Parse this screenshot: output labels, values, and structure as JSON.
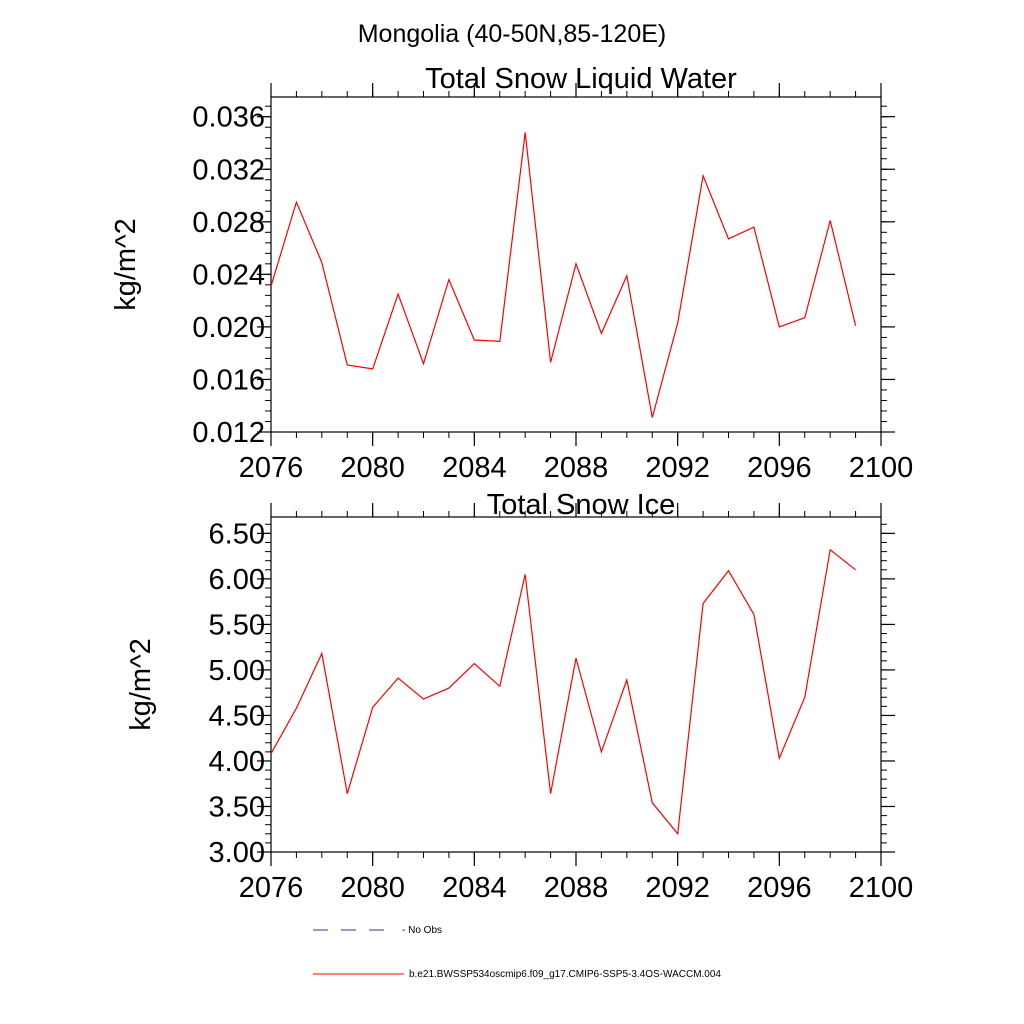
{
  "figure": {
    "title": "Mongolia (40-50N,85-120E)",
    "legend": {
      "entries": [
        {
          "label": "- No Obs",
          "color": "#2b3a8c",
          "style": "dashed"
        },
        {
          "label": "b.e21.BWSSP534oscmip6.f09_g17.CMIP6-SSP5-3.4OS-WACCM.004",
          "color": "#ff0000",
          "style": "solid"
        }
      ]
    }
  },
  "colors": {
    "series": "#ff0000",
    "axis": "#000000"
  },
  "chart_data": [
    {
      "type": "line",
      "title": "Total Snow Liquid Water",
      "xlabel": "",
      "ylabel": "kg/m^2",
      "xlim": [
        2076,
        2100
      ],
      "ylim": [
        0.012,
        0.0375
      ],
      "xticks": [
        "2076",
        "2080",
        "2084",
        "2088",
        "2092",
        "2096",
        "2100"
      ],
      "yticks": [
        "0.012",
        "0.016",
        "0.020",
        "0.024",
        "0.028",
        "0.032",
        "0.036"
      ],
      "grid": false,
      "x": [
        2076,
        2077,
        2078,
        2079,
        2080,
        2081,
        2082,
        2083,
        2084,
        2085,
        2086,
        2087,
        2088,
        2089,
        2090,
        2091,
        2092,
        2093,
        2094,
        2095,
        2096,
        2097,
        2098,
        2099
      ],
      "series": [
        {
          "values": [
            0.0231,
            0.0295,
            0.0249,
            0.0171,
            0.0168,
            0.0225,
            0.0172,
            0.0236,
            0.019,
            0.0189,
            0.0348,
            0.0173,
            0.0248,
            0.0195,
            0.0239,
            0.0131,
            0.0203,
            0.0315,
            0.0267,
            0.0276,
            0.02,
            0.0207,
            0.0281,
            0.0201
          ]
        }
      ]
    },
    {
      "type": "line",
      "title": "Total Snow Ice",
      "xlabel": "",
      "ylabel": "kg/m^2",
      "xlim": [
        2076,
        2100
      ],
      "ylim": [
        3.0,
        6.68
      ],
      "xticks": [
        "2076",
        "2080",
        "2084",
        "2088",
        "2092",
        "2096",
        "2100"
      ],
      "yticks": [
        "3.00",
        "3.50",
        "4.00",
        "4.50",
        "5.00",
        "5.50",
        "6.00",
        "6.50"
      ],
      "grid": false,
      "x": [
        2076,
        2077,
        2078,
        2079,
        2080,
        2081,
        2082,
        2083,
        2084,
        2085,
        2086,
        2087,
        2088,
        2089,
        2090,
        2091,
        2092,
        2093,
        2094,
        2095,
        2096,
        2097,
        2098,
        2099
      ],
      "series": [
        {
          "values": [
            4.08,
            4.58,
            5.18,
            3.64,
            4.59,
            4.91,
            4.68,
            4.8,
            5.07,
            4.82,
            6.05,
            3.64,
            5.13,
            4.1,
            4.89,
            3.54,
            3.2,
            5.73,
            6.09,
            5.61,
            4.03,
            4.7,
            6.32,
            6.1
          ]
        }
      ]
    }
  ]
}
